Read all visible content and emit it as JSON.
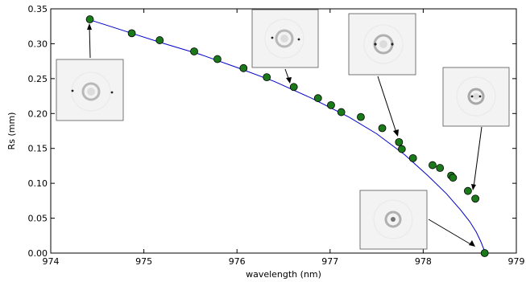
{
  "chart_data": {
    "type": "scatter",
    "xlabel": "wavelength (nm)",
    "ylabel": "Rs  (mm)",
    "xlim": [
      974,
      979
    ],
    "ylim": [
      0.0,
      0.35
    ],
    "x_ticks": [
      "974",
      "975",
      "976",
      "977",
      "978",
      "979"
    ],
    "y_ticks": [
      "0.00",
      "0.05",
      "0.10",
      "0.15",
      "0.20",
      "0.25",
      "0.30",
      "0.35"
    ],
    "grid": false,
    "point_color": "#1a7a1a",
    "line_color": "#0000cc",
    "points": [
      {
        "x": 974.42,
        "y": 0.335
      },
      {
        "x": 974.87,
        "y": 0.315
      },
      {
        "x": 975.17,
        "y": 0.305
      },
      {
        "x": 975.54,
        "y": 0.289
      },
      {
        "x": 975.79,
        "y": 0.278
      },
      {
        "x": 976.07,
        "y": 0.265
      },
      {
        "x": 976.32,
        "y": 0.252
      },
      {
        "x": 976.61,
        "y": 0.238
      },
      {
        "x": 976.87,
        "y": 0.222
      },
      {
        "x": 977.01,
        "y": 0.212
      },
      {
        "x": 977.12,
        "y": 0.202
      },
      {
        "x": 977.33,
        "y": 0.195
      },
      {
        "x": 977.56,
        "y": 0.179
      },
      {
        "x": 977.74,
        "y": 0.159
      },
      {
        "x": 977.77,
        "y": 0.149
      },
      {
        "x": 977.89,
        "y": 0.136
      },
      {
        "x": 978.1,
        "y": 0.126
      },
      {
        "x": 978.18,
        "y": 0.122
      },
      {
        "x": 978.3,
        "y": 0.111
      },
      {
        "x": 978.32,
        "y": 0.108
      },
      {
        "x": 978.48,
        "y": 0.089
      },
      {
        "x": 978.56,
        "y": 0.078
      },
      {
        "x": 978.66,
        "y": 0.0
      }
    ],
    "fit_curve": [
      {
        "x": 974.45,
        "y": 0.333
      },
      {
        "x": 974.8,
        "y": 0.318
      },
      {
        "x": 975.2,
        "y": 0.301
      },
      {
        "x": 975.6,
        "y": 0.285
      },
      {
        "x": 976.0,
        "y": 0.266
      },
      {
        "x": 976.4,
        "y": 0.246
      },
      {
        "x": 976.8,
        "y": 0.222
      },
      {
        "x": 977.2,
        "y": 0.195
      },
      {
        "x": 977.5,
        "y": 0.171
      },
      {
        "x": 977.8,
        "y": 0.141
      },
      {
        "x": 978.05,
        "y": 0.111
      },
      {
        "x": 978.25,
        "y": 0.085
      },
      {
        "x": 978.4,
        "y": 0.062
      },
      {
        "x": 978.5,
        "y": 0.045
      },
      {
        "x": 978.57,
        "y": 0.03
      },
      {
        "x": 978.62,
        "y": 0.016
      },
      {
        "x": 978.65,
        "y": 0.006
      },
      {
        "x": 978.66,
        "y": 0.0
      }
    ],
    "insets": [
      {
        "name": "inset-1",
        "anchor_point": 0
      },
      {
        "name": "inset-2",
        "anchor_point": 7
      },
      {
        "name": "inset-3",
        "anchor_point": 13
      },
      {
        "name": "inset-4",
        "anchor_point": 21
      },
      {
        "name": "inset-5",
        "anchor_point": 22
      }
    ]
  }
}
